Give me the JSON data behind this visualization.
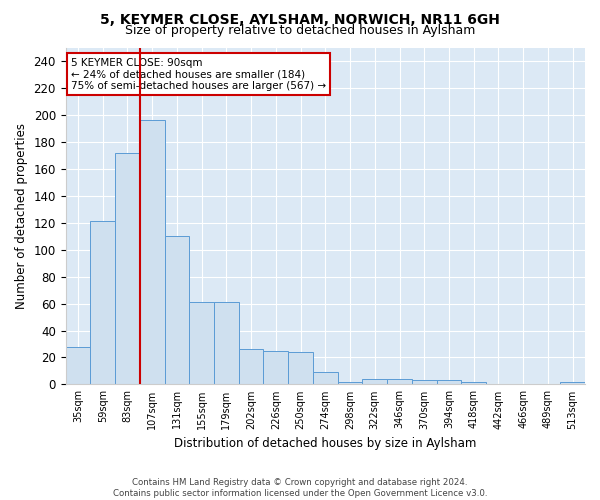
{
  "title": "5, KEYMER CLOSE, AYLSHAM, NORWICH, NR11 6GH",
  "subtitle": "Size of property relative to detached houses in Aylsham",
  "xlabel": "Distribution of detached houses by size in Aylsham",
  "ylabel": "Number of detached properties",
  "bar_labels": [
    "35sqm",
    "59sqm",
    "83sqm",
    "107sqm",
    "131sqm",
    "155sqm",
    "179sqm",
    "202sqm",
    "226sqm",
    "250sqm",
    "274sqm",
    "298sqm",
    "322sqm",
    "346sqm",
    "370sqm",
    "394sqm",
    "418sqm",
    "442sqm",
    "466sqm",
    "489sqm",
    "513sqm"
  ],
  "bar_values": [
    28,
    121,
    172,
    196,
    110,
    61,
    61,
    26,
    25,
    24,
    9,
    2,
    4,
    4,
    3,
    3,
    2,
    0,
    0,
    0,
    2
  ],
  "bar_color": "#cfe0ef",
  "bar_edge_color": "#5b9bd5",
  "vline_color": "#cc0000",
  "annotation_text": "5 KEYMER CLOSE: 90sqm\n← 24% of detached houses are smaller (184)\n75% of semi-detached houses are larger (567) →",
  "annotation_box_color": "#ffffff",
  "annotation_box_edge": "#cc0000",
  "ylim": [
    0,
    250
  ],
  "yticks": [
    0,
    20,
    40,
    60,
    80,
    100,
    120,
    140,
    160,
    180,
    200,
    220,
    240
  ],
  "bg_color": "#dce9f5",
  "footer_line1": "Contains HM Land Registry data © Crown copyright and database right 2024.",
  "footer_line2": "Contains public sector information licensed under the Open Government Licence v3.0."
}
